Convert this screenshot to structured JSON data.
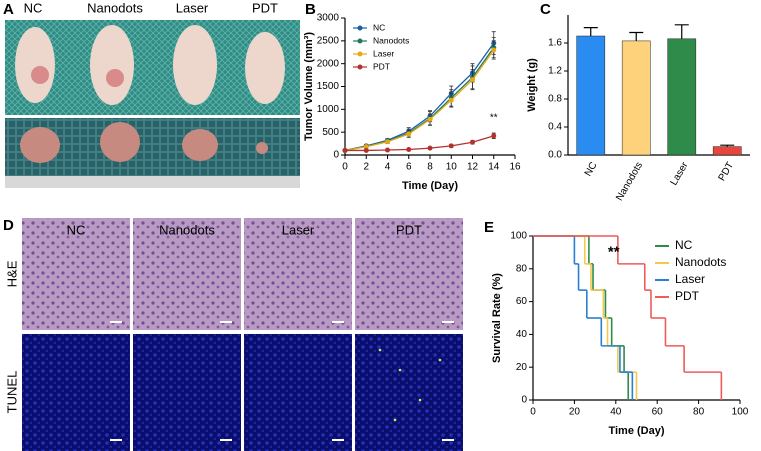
{
  "panels": {
    "letters": [
      "A",
      "B",
      "C",
      "D",
      "E"
    ]
  },
  "photos": {
    "a_columns": [
      "NC",
      "Nanodots",
      "Laser",
      "PDT"
    ],
    "d_columns": [
      "NC",
      "Nanodots",
      "Laser",
      "PDT"
    ],
    "d_rows": [
      "H&E",
      "TUNEL"
    ]
  },
  "chart_data": [
    {
      "type": "line",
      "xlabel": "Time (Day)",
      "ylabel": "Tumor Volume (mm³)",
      "x": [
        0,
        2,
        4,
        6,
        8,
        10,
        12,
        14
      ],
      "xlim": [
        0,
        16
      ],
      "xticks": [
        0,
        2,
        4,
        6,
        8,
        10,
        12,
        14,
        16
      ],
      "ylim": [
        0,
        3000
      ],
      "yticks": [
        0,
        500,
        1000,
        1500,
        2000,
        2500,
        3000
      ],
      "legend": "upper left",
      "annotation": "**",
      "series": [
        {
          "name": "NC",
          "color": "#1a5fa8",
          "values": [
            100,
            200,
            320,
            520,
            850,
            1350,
            1800,
            2450
          ],
          "errors": [
            10,
            30,
            40,
            80,
            120,
            160,
            200,
            250
          ]
        },
        {
          "name": "Nanodots",
          "color": "#1e7a5a",
          "values": [
            100,
            190,
            300,
            480,
            800,
            1250,
            1700,
            2350
          ],
          "errors": [
            10,
            30,
            40,
            90,
            150,
            180,
            250,
            220
          ]
        },
        {
          "name": "Laser",
          "color": "#e6a817",
          "values": [
            100,
            180,
            290,
            460,
            780,
            1200,
            1650,
            2300
          ],
          "errors": [
            10,
            30,
            40,
            70,
            120,
            150,
            220,
            200
          ]
        },
        {
          "name": "PDT",
          "color": "#b5322c",
          "values": [
            100,
            100,
            110,
            120,
            150,
            200,
            280,
            420
          ],
          "errors": [
            10,
            10,
            15,
            15,
            20,
            30,
            40,
            60
          ]
        }
      ]
    },
    {
      "type": "bar",
      "ylabel": "Weight (g)",
      "categories": [
        "NC",
        "Nanodots",
        "Laser",
        "PDT"
      ],
      "values": [
        1.7,
        1.63,
        1.66,
        0.12
      ],
      "errors": [
        0.12,
        0.12,
        0.2,
        0.02
      ],
      "colors": [
        "#2a8cf0",
        "#fdd27a",
        "#2e8b4a",
        "#e8453c"
      ],
      "ylim": [
        0,
        2.0
      ],
      "yticks": [
        {
          "value": 0,
          "label": "0.0"
        },
        0.4,
        0.8,
        1.2,
        1.6
      ]
    },
    {
      "type": "step",
      "xlabel": "Time (Day)",
      "ylabel": "Survival Rate (%)",
      "xlim": [
        0,
        100
      ],
      "xticks": [
        0,
        20,
        40,
        60,
        80,
        100
      ],
      "ylim": [
        0,
        100
      ],
      "yticks": [
        0,
        20,
        40,
        60,
        80,
        100
      ],
      "legend": "upper right",
      "annotation": "**",
      "series": [
        {
          "name": "NC",
          "color": "#2e8b4a",
          "x": [
            0,
            27,
            29,
            35,
            38,
            44,
            46
          ],
          "values": [
            100,
            83,
            67,
            50,
            33,
            17,
            0
          ]
        },
        {
          "name": "Nanodots",
          "color": "#f2c94c",
          "x": [
            0,
            25,
            28,
            34,
            36,
            41,
            50
          ],
          "values": [
            100,
            83,
            67,
            50,
            33,
            17,
            0
          ]
        },
        {
          "name": "Laser",
          "color": "#2a7fd0",
          "x": [
            0,
            20,
            22,
            26,
            33,
            42,
            48
          ],
          "values": [
            100,
            83,
            67,
            50,
            33,
            17,
            0
          ]
        },
        {
          "name": "PDT",
          "color": "#ef5a5a",
          "x": [
            0,
            41,
            54,
            57,
            64,
            73,
            91
          ],
          "values": [
            100,
            83,
            67,
            50,
            33,
            17,
            0
          ]
        }
      ]
    }
  ]
}
